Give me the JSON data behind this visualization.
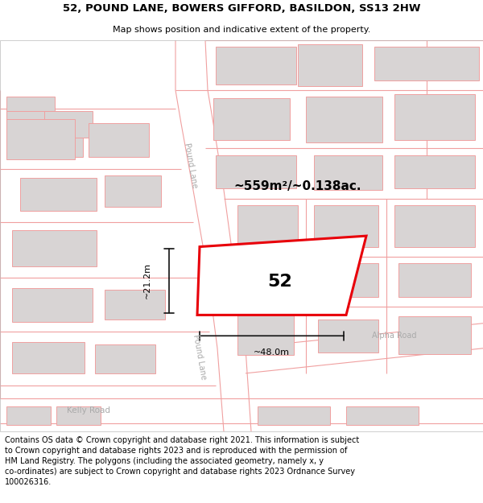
{
  "title": "52, POUND LANE, BOWERS GIFFORD, BASILDON, SS13 2HW",
  "subtitle": "Map shows position and indicative extent of the property.",
  "footer": "Contains OS data © Crown copyright and database right 2021. This information is subject\nto Crown copyright and database rights 2023 and is reproduced with the permission of\nHM Land Registry. The polygons (including the associated geometry, namely x, y\nco-ordinates) are subject to Crown copyright and database rights 2023 Ordnance Survey\n100026316.",
  "area_text": "~559m²/~0.138ac.",
  "dim_width": "~48.0m",
  "dim_height": "~21.2m",
  "label_52": "52",
  "road_pound_lane": "Pound Lane",
  "road_alpha": "Alpha Road",
  "road_kelly": "Kelly Road",
  "map_bg": "#ffffff",
  "highlight_color": "#e8000a",
  "building_fill": "#d8d4d4",
  "road_line_color": "#f0a0a0",
  "dim_line_color": "#111111",
  "road_label_color": "#aaaaaa",
  "title_fontsize": 9.5,
  "subtitle_fontsize": 8,
  "label_fontsize": 16,
  "area_fontsize": 11,
  "footer_fontsize": 7.0,
  "dim_fontsize": 8
}
